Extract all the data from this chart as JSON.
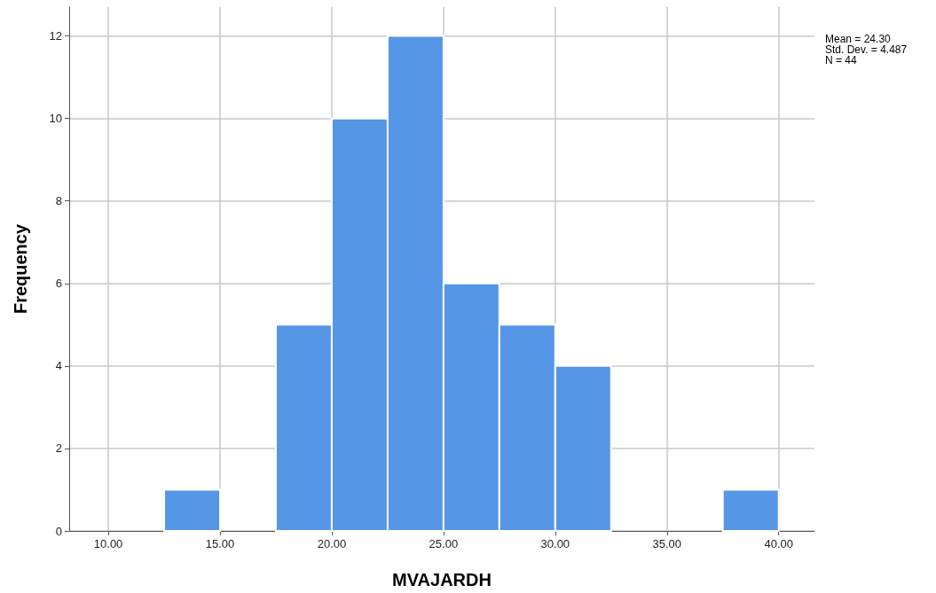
{
  "chart_data": {
    "type": "histogram",
    "xlabel": "MVAJARDH",
    "ylabel": "Frequency",
    "bins": [
      12.5,
      15,
      17.5,
      20,
      22.5,
      25,
      27.5,
      30,
      32.5,
      35,
      37.5,
      40
    ],
    "values": [
      1,
      0,
      5,
      10,
      12,
      6,
      5,
      4,
      0,
      0,
      1
    ],
    "color": "#5596e6",
    "xlim": [
      8.25,
      41.6
    ],
    "xticks": [
      {
        "value": 10,
        "label": "10.00"
      },
      {
        "value": 15,
        "label": "15.00"
      },
      {
        "value": 20,
        "label": "20.00"
      },
      {
        "value": 25,
        "label": "25.00"
      },
      {
        "value": 30,
        "label": "30.00"
      },
      {
        "value": 35,
        "label": "35.00"
      },
      {
        "value": 40,
        "label": "40.00"
      }
    ],
    "ylim": [
      0,
      12.7
    ],
    "yticks": [
      0,
      2,
      4,
      6,
      8,
      10,
      12
    ],
    "grid": true,
    "annotations": [
      "Mean = 24.30",
      "Std. Dev. = 4.487",
      "N = 44"
    ]
  }
}
